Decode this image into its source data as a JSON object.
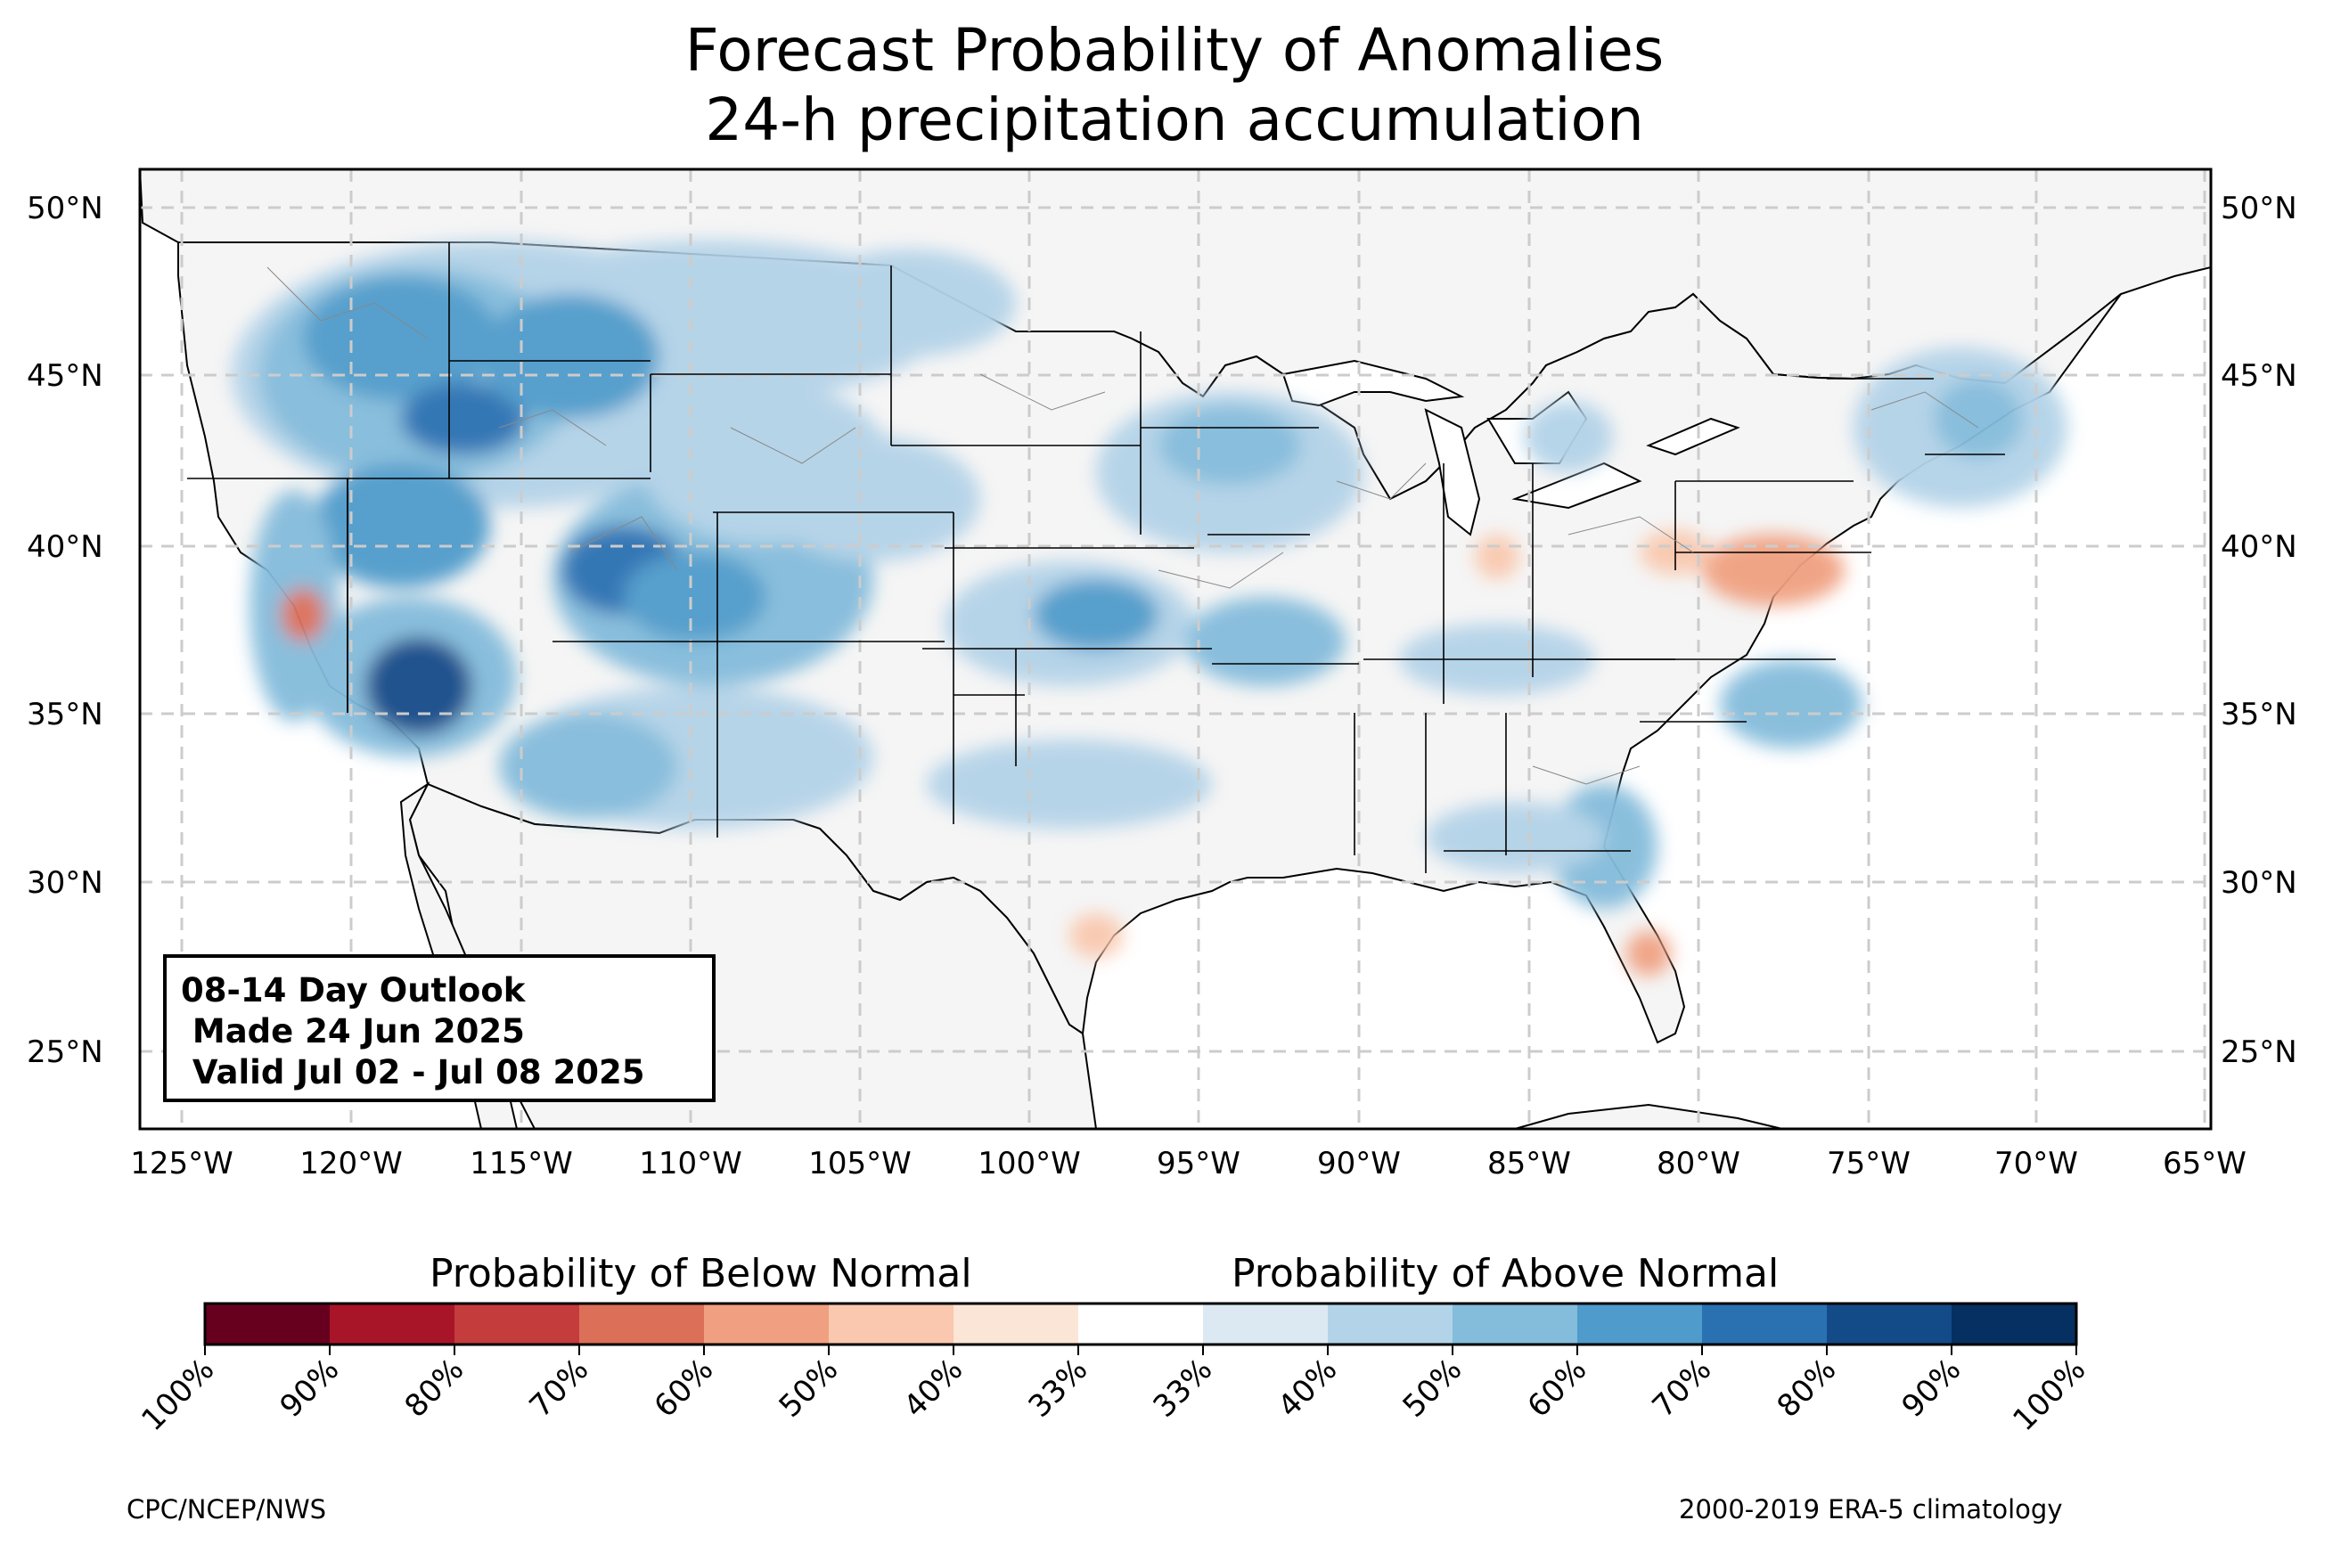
{
  "title": {
    "line1": "Forecast Probability of Anomalies",
    "line2": "24-h precipitation accumulation"
  },
  "map": {
    "lat_labels": [
      "50°N",
      "45°N",
      "40°N",
      "35°N",
      "30°N",
      "25°N"
    ],
    "lon_labels": [
      "125°W",
      "120°W",
      "115°W",
      "110°W",
      "105°W",
      "100°W",
      "95°W",
      "90°W",
      "85°W",
      "80°W",
      "75°W",
      "70°W",
      "65°W"
    ],
    "land_color": "#f5f5f5",
    "gridline_color": "#cccccc",
    "border_color": "#000000",
    "blue_regions": [
      {
        "name": "northern-rockies",
        "level": 3
      },
      {
        "name": "idaho-montana-core",
        "level": 4
      },
      {
        "name": "northern-california-nevada",
        "level": 2
      },
      {
        "name": "southern-california",
        "level": 4
      },
      {
        "name": "four-corners",
        "level": 3
      },
      {
        "name": "central-plains",
        "level": 2
      },
      {
        "name": "iowa-upper-midwest",
        "level": 2
      },
      {
        "name": "northeast",
        "level": 2
      },
      {
        "name": "southeast-georgia-florida",
        "level": 2
      },
      {
        "name": "north-carolina",
        "level": 2
      }
    ],
    "red_regions": [
      {
        "name": "san-francisco-bay",
        "level": 2
      },
      {
        "name": "mid-atlantic",
        "level": 1
      },
      {
        "name": "central-florida",
        "level": 1
      },
      {
        "name": "south-texas",
        "level": 1
      }
    ]
  },
  "outlook": {
    "line1": "08-14 Day Outlook",
    "line2": " Made 24 Jun 2025",
    "line3": " Valid Jul 02 - Jul 08 2025"
  },
  "colorbar": {
    "below_label": "Probability of Below Normal",
    "above_label": "Probability of Above Normal",
    "colors": [
      "#67001f",
      "#a81529",
      "#c43c3c",
      "#dc6f58",
      "#f0a081",
      "#f9c8ae",
      "#fbe5d6",
      "#ffffff",
      "#dce9f2",
      "#b3d3e8",
      "#84bcdb",
      "#4f9bcb",
      "#2a71b2",
      "#134b89",
      "#053061"
    ],
    "tick_labels": [
      "100%",
      "90%",
      "80%",
      "70%",
      "60%",
      "50%",
      "40%",
      "33%",
      "33%",
      "40%",
      "50%",
      "60%",
      "70%",
      "80%",
      "90%",
      "100%"
    ]
  },
  "credits": {
    "left": "CPC/NCEP/NWS",
    "right": "2000-2019 ERA-5 climatology"
  }
}
